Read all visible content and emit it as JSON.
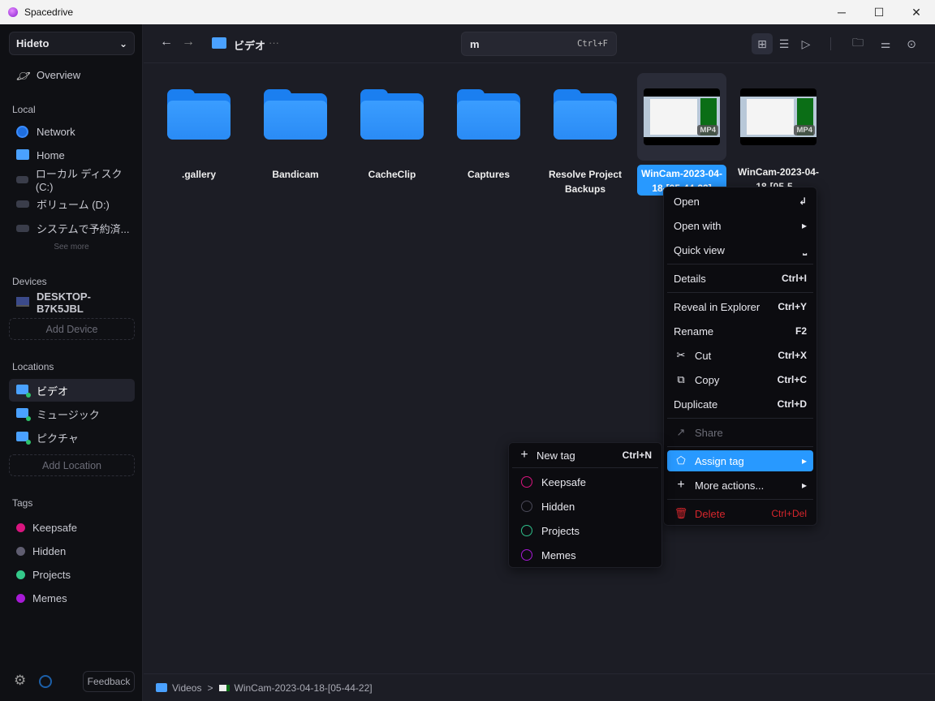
{
  "window": {
    "title": "Spacedrive",
    "minimize": "─",
    "maximize": "☐",
    "close": "✕"
  },
  "sidebar": {
    "library": "Hideto",
    "overview": "Overview",
    "local_heading": "Local",
    "local": [
      {
        "label": "Network",
        "icon": "globe-icon"
      },
      {
        "label": "Home",
        "icon": "home-folder-icon"
      },
      {
        "label": "ローカル ディスク (C:)",
        "icon": "drive-icon"
      },
      {
        "label": "ボリューム (D:)",
        "icon": "drive-icon"
      },
      {
        "label": "システムで予約済...",
        "icon": "drive-icon"
      }
    ],
    "see_more": "See more",
    "devices_heading": "Devices",
    "device": "DESKTOP-B7K5JBL",
    "add_device": "Add Device",
    "locations_heading": "Locations",
    "locations": [
      {
        "label": "ビデオ",
        "active": true
      },
      {
        "label": "ミュージック"
      },
      {
        "label": "ピクチャ"
      }
    ],
    "add_location": "Add Location",
    "tags_heading": "Tags",
    "tags": [
      {
        "label": "Keepsafe",
        "color": "#d9157f"
      },
      {
        "label": "Hidden",
        "color": "#5f5d70"
      },
      {
        "label": "Projects",
        "color": "#34c98a"
      },
      {
        "label": "Memes",
        "color": "#a71ad6"
      }
    ],
    "feedback": "Feedback"
  },
  "topbar": {
    "location": "ビデオ",
    "more": "···",
    "search_value": "m",
    "search_shortcut": "Ctrl+F"
  },
  "files": [
    {
      "name": ".gallery",
      "type": "folder"
    },
    {
      "name": "Bandicam",
      "type": "folder"
    },
    {
      "name": "CacheClip",
      "type": "folder"
    },
    {
      "name": "Captures",
      "type": "folder"
    },
    {
      "name": "Resolve Project Backups",
      "type": "folder"
    },
    {
      "name": "WinCam-2023-04-18-[05-44-22]",
      "type": "video",
      "badge": "MP4",
      "selected": true
    },
    {
      "name": "WinCam-2023-04-18-[05-5...",
      "type": "video",
      "badge": "MP4"
    }
  ],
  "context_menu": {
    "open": {
      "label": "Open",
      "shortcut": "↲"
    },
    "open_with": {
      "label": "Open with"
    },
    "quick_view": {
      "label": "Quick view",
      "shortcut": "⎵"
    },
    "details": {
      "label": "Details",
      "shortcut": "Ctrl+I"
    },
    "reveal": {
      "label": "Reveal in Explorer",
      "shortcut": "Ctrl+Y"
    },
    "rename": {
      "label": "Rename",
      "shortcut": "F2"
    },
    "cut": {
      "label": "Cut",
      "shortcut": "Ctrl+X"
    },
    "copy": {
      "label": "Copy",
      "shortcut": "Ctrl+C"
    },
    "duplicate": {
      "label": "Duplicate",
      "shortcut": "Ctrl+D"
    },
    "share": {
      "label": "Share"
    },
    "assign_tag": {
      "label": "Assign tag"
    },
    "more_actions": {
      "label": "More actions..."
    },
    "delete": {
      "label": "Delete",
      "shortcut": "Ctrl+Del"
    }
  },
  "tag_submenu": {
    "new_tag": "New tag",
    "new_tag_shortcut": "Ctrl+N",
    "tags": [
      {
        "label": "Keepsafe",
        "color": "#d9157f"
      },
      {
        "label": "Hidden",
        "color": "#4a4958"
      },
      {
        "label": "Projects",
        "color": "#2fbf8a"
      },
      {
        "label": "Memes",
        "color": "#a71ad6"
      }
    ]
  },
  "footer": {
    "path": [
      "Videos",
      "WinCam-2023-04-18-[05-44-22]"
    ],
    "separator": ">"
  }
}
